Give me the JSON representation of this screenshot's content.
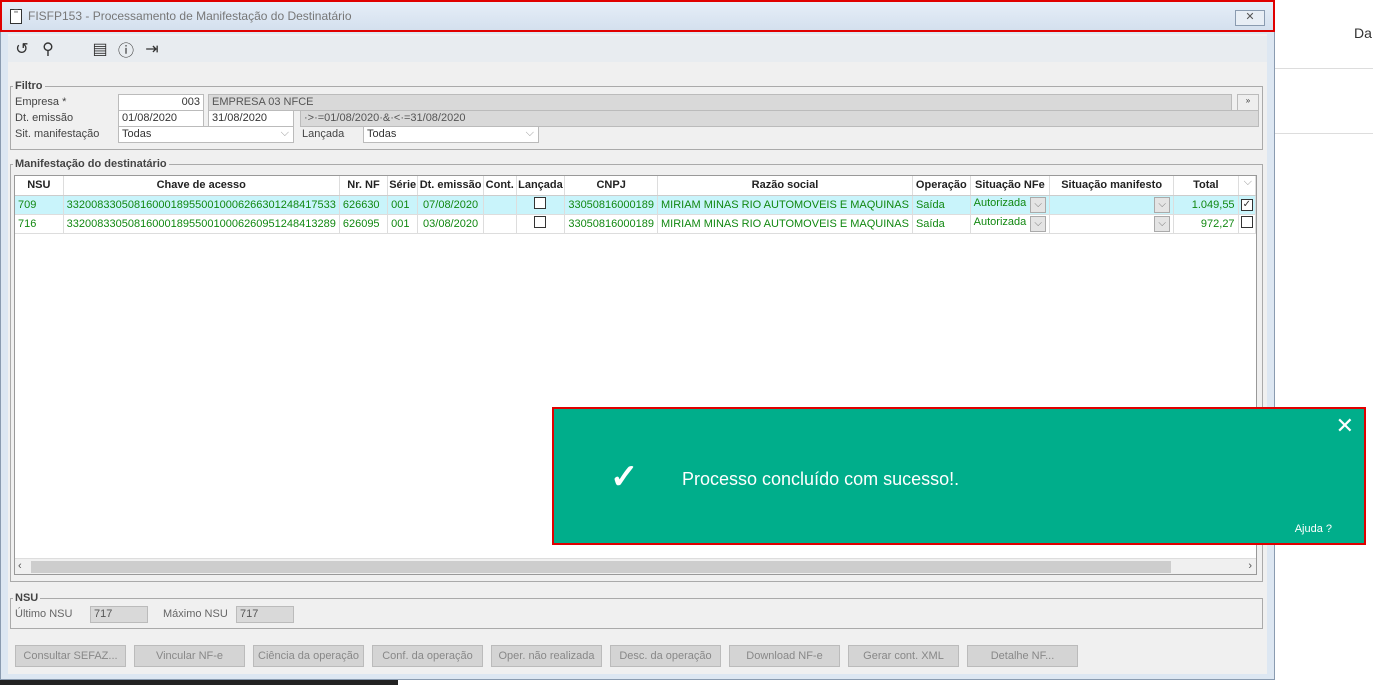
{
  "window": {
    "title": "FISFP153 - Processamento de Manifestação do Destinatário",
    "close": "✕"
  },
  "toolbar": {
    "icons": [
      "refresh-icon",
      "search-icon",
      "calendar-icon",
      "help-icon",
      "exit-icon"
    ]
  },
  "filter": {
    "legend": "Filtro",
    "empresa_label": "Empresa *",
    "empresa_code": "003",
    "empresa_name": "EMPRESA 03 NFCE",
    "dt_label": "Dt. emissão",
    "dt_from": "01/08/2020",
    "dt_to": "31/08/2020",
    "dt_expr": "·>·=01/08/2020·&·<·=31/08/2020",
    "sit_label": "Sit. manifestação",
    "sit_value": "Todas",
    "lancada_label": "Lançada",
    "lancada_value": "Todas"
  },
  "grid": {
    "legend": "Manifestação do destinatário",
    "columns": [
      "NSU",
      "Chave de acesso",
      "Nr. NF",
      "Série",
      "Dt. emissão",
      "Cont.",
      "Lançada",
      "CNPJ",
      "Razão social",
      "Operação",
      "Situação NFe",
      "Situação manifesto",
      "Total",
      ""
    ],
    "rows": [
      {
        "nsu": "709",
        "chave": "33200833050816000189550010006266301248417533",
        "nf": "626630",
        "serie": "001",
        "dt": "07/08/2020",
        "cont": "",
        "lancada": false,
        "cnpj": "33050816000189",
        "razao": "MIRIAM MINAS RIO AUTOMOVEIS E MAQUINAS",
        "operacao": "Saída",
        "sit_nfe": "Autorizada",
        "sit_manif": "",
        "total": "1.049,55",
        "checked": true
      },
      {
        "nsu": "716",
        "chave": "33200833050816000189550010006260951248413289",
        "nf": "626095",
        "serie": "001",
        "dt": "03/08/2020",
        "cont": "",
        "lancada": false,
        "cnpj": "33050816000189",
        "razao": "MIRIAM MINAS RIO AUTOMOVEIS E MAQUINAS",
        "operacao": "Saída",
        "sit_nfe": "Autorizada",
        "sit_manif": "",
        "total": "972,27",
        "checked": false
      }
    ]
  },
  "nsu": {
    "legend": "NSU",
    "ultimo_label": "Último NSU",
    "ultimo": "717",
    "maximo_label": "Máximo NSU",
    "maximo": "717"
  },
  "buttons": [
    "Consultar SEFAZ...",
    "Vincular NF-e",
    "Ciência da operação",
    "Conf. da operação",
    "Oper. não realizada",
    "Desc. da operação",
    "Download NF-e",
    "Gerar cont. XML",
    "Detalhe NF..."
  ],
  "toast": {
    "message": "Processo concluído com sucesso!.",
    "help": "Ajuda ?",
    "color": "#00ae8b"
  },
  "background": {
    "text": "Da"
  }
}
